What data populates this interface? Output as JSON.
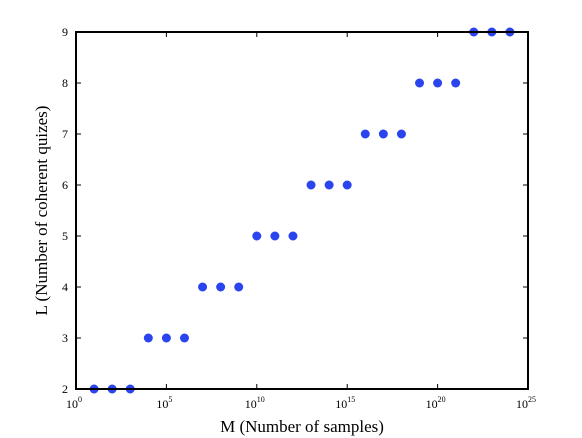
{
  "chart_data": {
    "type": "scatter",
    "title": "",
    "xlabel": "M (Number of samples)",
    "ylabel": "L (Number of coherent quizes)",
    "xscale": "log",
    "xlim": [
      1,
      1e+25
    ],
    "ylim": [
      2,
      9
    ],
    "xticks": [
      {
        "base": "10",
        "exp": "0"
      },
      {
        "base": "10",
        "exp": "5"
      },
      {
        "base": "10",
        "exp": "10"
      },
      {
        "base": "10",
        "exp": "15"
      },
      {
        "base": "10",
        "exp": "20"
      },
      {
        "base": "10",
        "exp": "25"
      }
    ],
    "yticks": [
      "2",
      "3",
      "4",
      "5",
      "6",
      "7",
      "8",
      "9"
    ],
    "grid": false,
    "marker_color": "#2b45ee",
    "points": [
      {
        "x": 10.0,
        "y": 2
      },
      {
        "x": 100.0,
        "y": 2
      },
      {
        "x": 1000.0,
        "y": 2
      },
      {
        "x": 10000.0,
        "y": 3
      },
      {
        "x": 100000.0,
        "y": 3
      },
      {
        "x": 1000000.0,
        "y": 3
      },
      {
        "x": 10000000.0,
        "y": 4
      },
      {
        "x": 100000000.0,
        "y": 4
      },
      {
        "x": 1000000000.0,
        "y": 4
      },
      {
        "x": 10000000000.0,
        "y": 5
      },
      {
        "x": 100000000000.0,
        "y": 5
      },
      {
        "x": 1000000000000.0,
        "y": 5
      },
      {
        "x": 10000000000000.0,
        "y": 6
      },
      {
        "x": 100000000000000.0,
        "y": 6
      },
      {
        "x": 1000000000000000.0,
        "y": 6
      },
      {
        "x": 1e+16,
        "y": 7
      },
      {
        "x": 1e+17,
        "y": 7
      },
      {
        "x": 1e+18,
        "y": 7
      },
      {
        "x": 1e+19,
        "y": 8
      },
      {
        "x": 1e+20,
        "y": 8
      },
      {
        "x": 1e+21,
        "y": 8
      },
      {
        "x": 1e+22,
        "y": 9
      },
      {
        "x": 1e+23,
        "y": 9
      },
      {
        "x": 1e+24,
        "y": 9
      }
    ]
  }
}
